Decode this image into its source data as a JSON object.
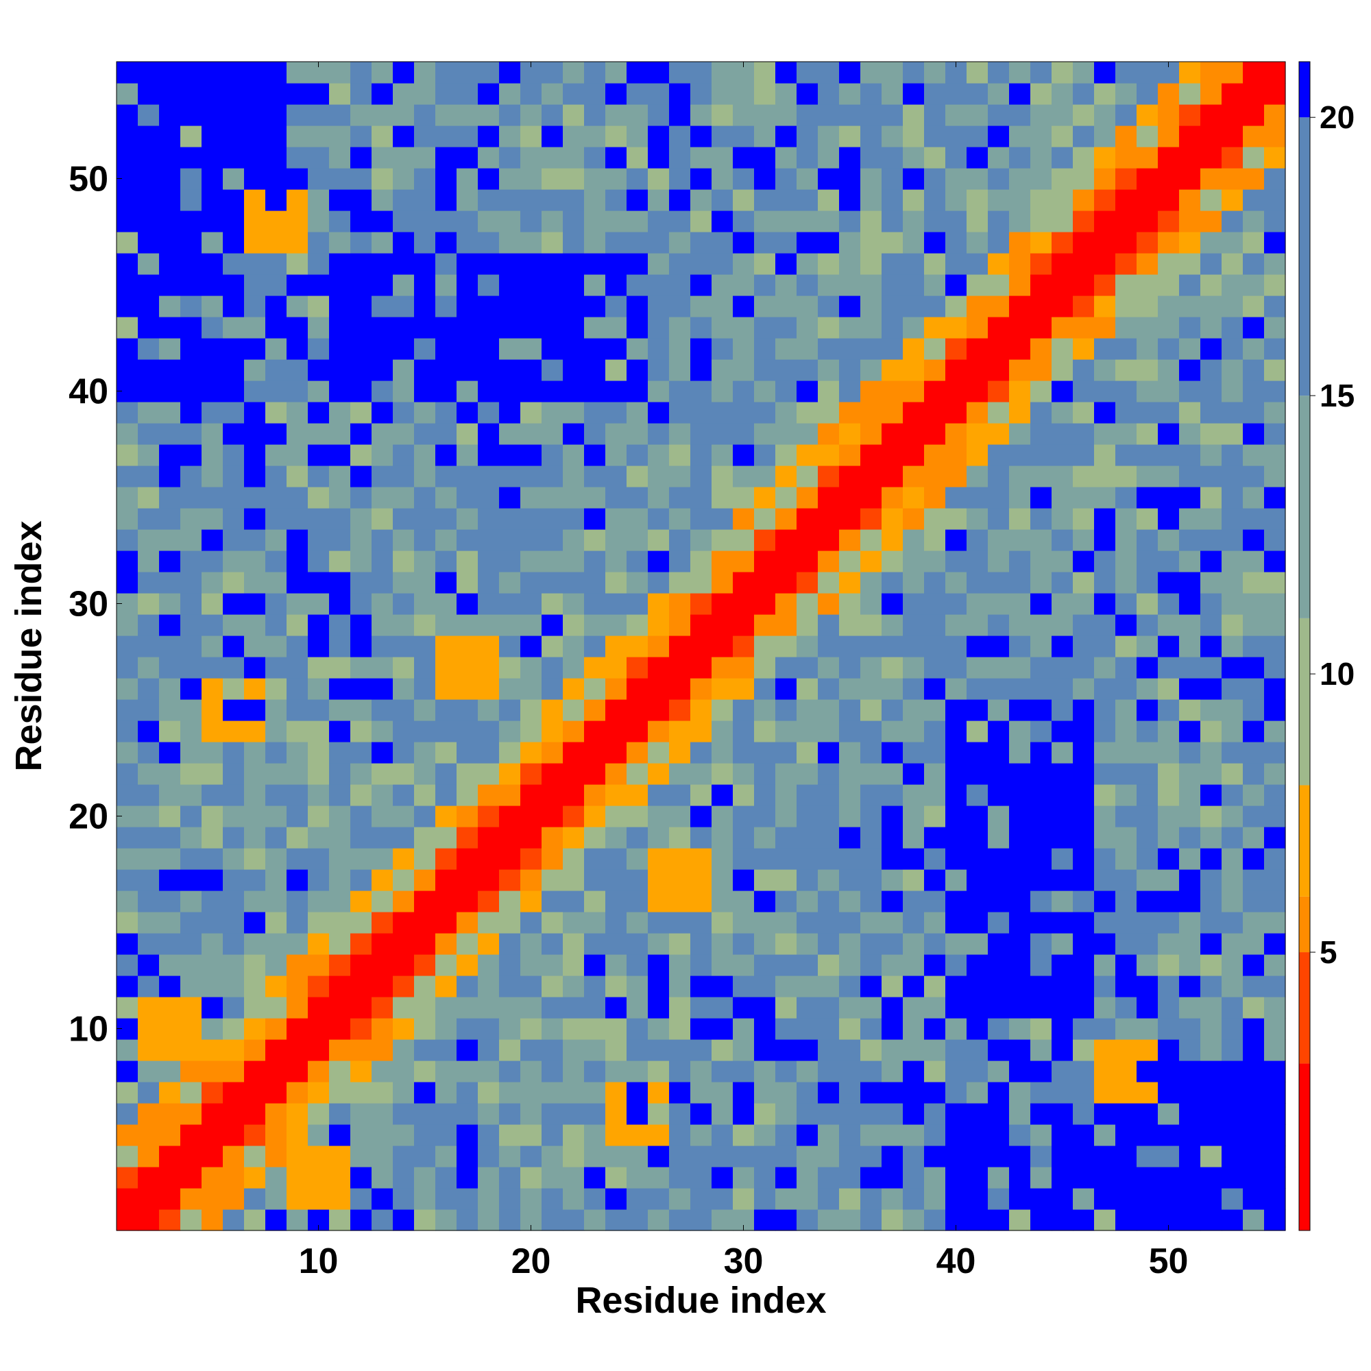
{
  "chart_data": {
    "type": "heatmap",
    "title": "",
    "xlabel": "Residue index",
    "ylabel": "Residue index",
    "n": 55,
    "xlim": [
      0.5,
      55.5
    ],
    "ylim": [
      0.5,
      55.5
    ],
    "x_ticks": [
      10,
      20,
      30,
      40,
      50
    ],
    "y_ticks": [
      10,
      20,
      30,
      40,
      50
    ],
    "colorbar": {
      "ticks": [
        5,
        10,
        15,
        20
      ],
      "range": [
        0,
        21
      ],
      "palette": [
        {
          "max": 3,
          "color": "#ff0000"
        },
        {
          "max": 5,
          "color": "#ff4500"
        },
        {
          "max": 6,
          "color": "#ff8c00"
        },
        {
          "max": 8,
          "color": "#ffa500"
        },
        {
          "max": 11,
          "color": "#9fb98b"
        },
        {
          "max": 15,
          "color": "#7ea4a0"
        },
        {
          "max": 20,
          "color": "#5b86b8"
        },
        {
          "max": 21,
          "color": "#0000ff"
        }
      ]
    },
    "distance_model": {
      "description_units": "distance between residues",
      "diagonal_value": 1.0,
      "blocks": [
        {
          "i": [
            40,
            46
          ],
          "j": [
            11,
            25
          ],
          "value": 21
        },
        {
          "i": [
            11,
            25
          ],
          "j": [
            40,
            46
          ],
          "value": 21
        },
        {
          "i": [
            1,
            6
          ],
          "j": [
            40,
            55
          ],
          "value": 21
        },
        {
          "i": [
            40,
            55
          ],
          "j": [
            1,
            6
          ],
          "value": 21
        },
        {
          "i": [
            49,
            55
          ],
          "j": [
            1,
            8
          ],
          "value": 21
        },
        {
          "i": [
            1,
            8
          ],
          "j": [
            49,
            55
          ],
          "value": 21
        }
      ],
      "near_contacts": [
        {
          "i": 3,
          "j": 10,
          "value": 6
        },
        {
          "i": 10,
          "j": 3,
          "value": 6
        },
        {
          "i": 6,
          "j": 25,
          "value": 7
        },
        {
          "i": 25,
          "j": 6,
          "value": 7
        },
        {
          "i": 17,
          "j": 27,
          "value": 6
        },
        {
          "i": 27,
          "j": 17,
          "value": 6
        },
        {
          "i": 48,
          "j": 8,
          "value": 6
        },
        {
          "i": 8,
          "j": 48,
          "value": 6
        }
      ]
    }
  }
}
